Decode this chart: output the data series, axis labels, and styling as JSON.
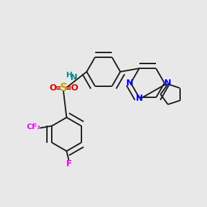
{
  "bg_color": "#e8e8e8",
  "bond_color": "#1a1a1a",
  "nitrogen_color": "#0000ee",
  "oxygen_color": "#dd0000",
  "sulfur_color": "#bbaa00",
  "fluorine_color": "#ee00ee",
  "nh_color": "#008888",
  "figsize": [
    3.0,
    3.0
  ],
  "dpi": 100,
  "xlim": [
    0,
    10
  ],
  "ylim": [
    0,
    10
  ]
}
